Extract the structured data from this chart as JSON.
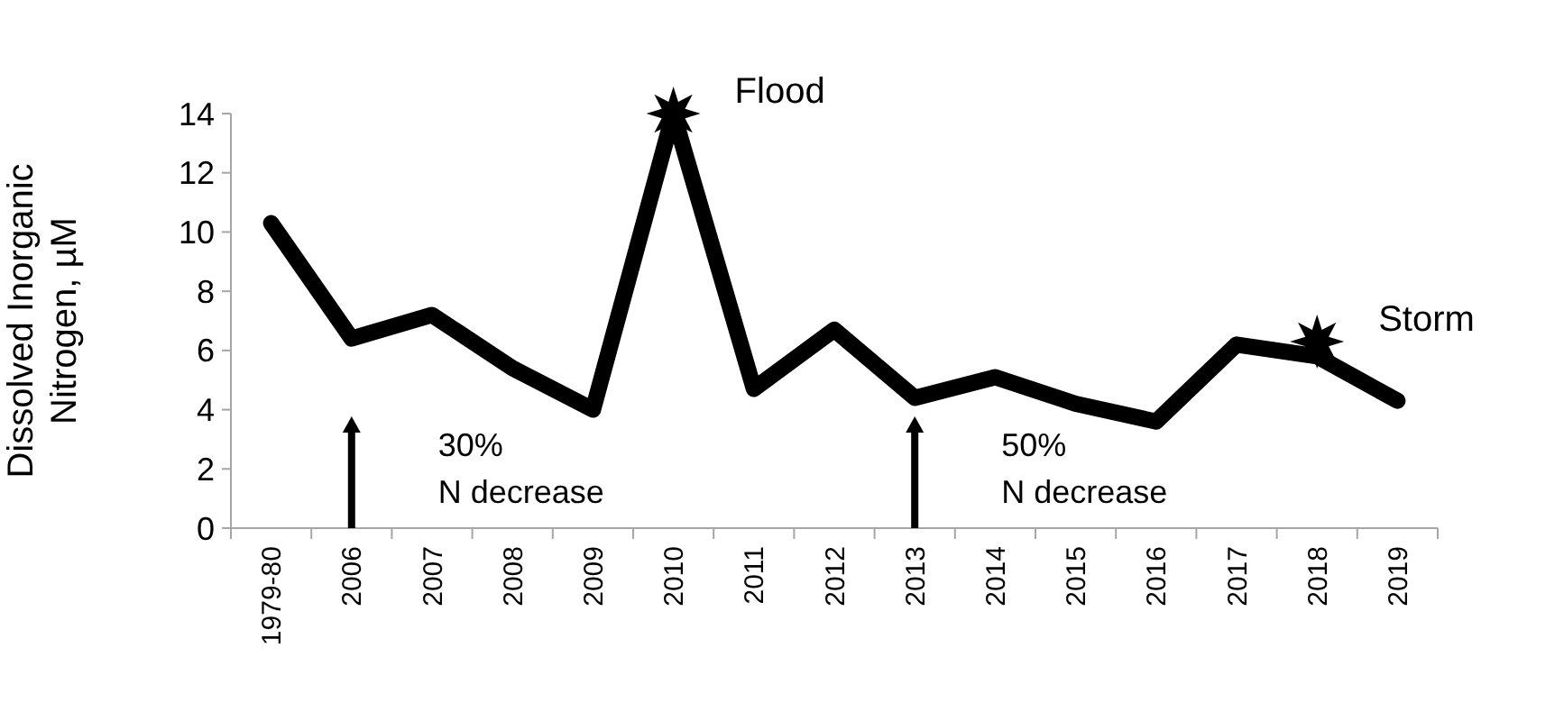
{
  "chart_data": {
    "type": "line",
    "ylabel": "Dissolved Inorganic\nNitrogen, µM",
    "categories": [
      "1979-80",
      "2006",
      "2007",
      "2008",
      "2009",
      "2010",
      "2011",
      "2012",
      "2013",
      "2014",
      "2015",
      "2016",
      "2017",
      "2018",
      "2019"
    ],
    "series": [
      {
        "color": "#000000",
        "values": [
          10.3,
          6.4,
          7.2,
          5.4,
          4.0,
          14.0,
          4.7,
          6.7,
          4.4,
          5.1,
          4.2,
          3.6,
          6.2,
          5.8,
          4.3
        ]
      },
      {
        "type": "scatter",
        "marker": "star",
        "color": "#000000",
        "values": [
          null,
          null,
          null,
          null,
          null,
          14.0,
          null,
          null,
          null,
          null,
          null,
          null,
          null,
          6.3,
          null
        ]
      }
    ],
    "ylim": [
      0,
      14
    ],
    "yticks": [
      0,
      2,
      4,
      6,
      8,
      10,
      12,
      14
    ],
    "grid": false,
    "annotations": [
      {
        "text": "Flood",
        "x": "2010",
        "y": 14.0
      },
      {
        "text": "Storm",
        "x": "2018",
        "y": 6.3
      }
    ],
    "ref_lines": [
      {
        "axis": "x",
        "value": "2006",
        "label": "30%\nN decrease"
      },
      {
        "axis": "x",
        "value": "2013",
        "label": "50%\nN decrease"
      }
    ]
  }
}
